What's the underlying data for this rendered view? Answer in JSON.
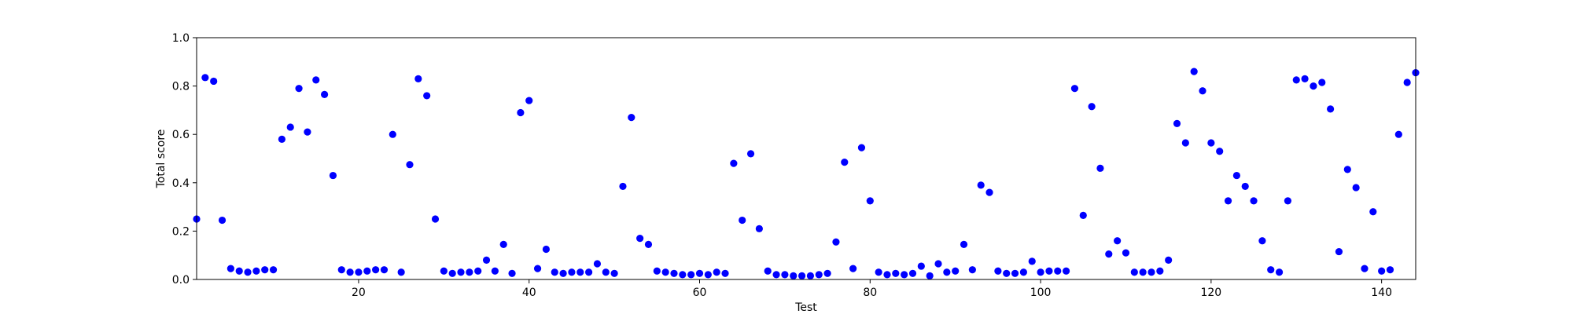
{
  "chart_data": {
    "type": "scatter",
    "title": "",
    "xlabel": "Test",
    "ylabel": "Total score",
    "xlim": [
      1,
      144
    ],
    "ylim": [
      0,
      1
    ],
    "xticks": [
      20,
      40,
      60,
      80,
      100,
      120,
      140
    ],
    "yticks": [
      0.0,
      0.2,
      0.4,
      0.6,
      0.8,
      1.0
    ],
    "xtick_labels": [
      "20",
      "40",
      "60",
      "80",
      "100",
      "120",
      "140"
    ],
    "ytick_labels": [
      "0.0",
      "0.2",
      "0.4",
      "0.6",
      "0.8",
      "1.0"
    ],
    "grid": false,
    "marker_color": "#0000ff",
    "series": [
      {
        "x": [
          1,
          2,
          3,
          4,
          5,
          6,
          7,
          8,
          9,
          10,
          11,
          12,
          13,
          14,
          15,
          16,
          17,
          18,
          19,
          20,
          21,
          22,
          23,
          24,
          25,
          26,
          27,
          28,
          29,
          30,
          31,
          32,
          33,
          34,
          35,
          36,
          37,
          38,
          39,
          40,
          41,
          42,
          43,
          44,
          45,
          46,
          47,
          48,
          49,
          50,
          51,
          52,
          53,
          54,
          55,
          56,
          57,
          58,
          59,
          60,
          61,
          62,
          63,
          64,
          65,
          66,
          67,
          68,
          69,
          70,
          71,
          72,
          73,
          74,
          75,
          76,
          77,
          78,
          79,
          80,
          81,
          82,
          83,
          84,
          85,
          86,
          87,
          88,
          89,
          90,
          91,
          92,
          93,
          94,
          95,
          96,
          97,
          98,
          99,
          100,
          101,
          102,
          103,
          104,
          105,
          106,
          107,
          108,
          109,
          110,
          111,
          112,
          113,
          114,
          115,
          116,
          117,
          118,
          119,
          120,
          121,
          122,
          123,
          124,
          125,
          126,
          127,
          128,
          129,
          130,
          131,
          132,
          133,
          134,
          135,
          136,
          137,
          138,
          139,
          140,
          141,
          142,
          143,
          144
        ],
        "y": [
          0.25,
          0.835,
          0.82,
          0.245,
          0.045,
          0.035,
          0.03,
          0.035,
          0.04,
          0.04,
          0.58,
          0.63,
          0.79,
          0.61,
          0.825,
          0.765,
          0.43,
          0.04,
          0.03,
          0.03,
          0.035,
          0.04,
          0.04,
          0.6,
          0.03,
          0.475,
          0.83,
          0.76,
          0.25,
          0.035,
          0.025,
          0.03,
          0.03,
          0.035,
          0.08,
          0.035,
          0.145,
          0.025,
          0.69,
          0.74,
          0.045,
          0.125,
          0.03,
          0.025,
          0.03,
          0.03,
          0.03,
          0.065,
          0.03,
          0.025,
          0.385,
          0.67,
          0.17,
          0.145,
          0.035,
          0.03,
          0.025,
          0.02,
          0.02,
          0.025,
          0.02,
          0.03,
          0.025,
          0.48,
          0.245,
          0.52,
          0.21,
          0.035,
          0.02,
          0.02,
          0.015,
          0.015,
          0.015,
          0.02,
          0.025,
          0.155,
          0.485,
          0.045,
          0.545,
          0.325,
          0.03,
          0.02,
          0.025,
          0.02,
          0.025,
          0.055,
          0.015,
          0.065,
          0.03,
          0.035,
          0.145,
          0.04,
          0.39,
          0.36,
          0.035,
          0.025,
          0.025,
          0.03,
          0.075,
          0.03,
          0.035,
          0.035,
          0.035,
          0.79,
          0.265,
          0.715,
          0.46,
          0.105,
          0.16,
          0.11,
          0.03,
          0.03,
          0.03,
          0.035,
          0.08,
          0.645,
          0.565,
          0.86,
          0.78,
          0.565,
          0.53,
          0.325,
          0.43,
          0.385,
          0.325,
          0.16,
          0.04,
          0.03,
          0.325,
          0.825,
          0.83,
          0.8,
          0.815,
          0.705,
          0.115,
          0.455,
          0.38,
          0.045,
          0.28,
          0.035,
          0.04,
          0.6,
          0.815,
          0.855
        ]
      }
    ]
  }
}
